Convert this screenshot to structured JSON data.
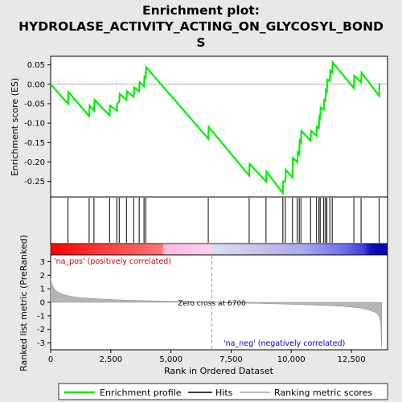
{
  "chart_data": {
    "type": "line",
    "title_lines": [
      "Enrichment plot:",
      "HYDROLASE_ACTIVITY_ACTING_ON_GLYCOSYL_BOND",
      "S"
    ],
    "top_panel": {
      "ylabel": "Enrichment score (ES)",
      "yticks": [
        0.05,
        0.0,
        -0.05,
        -0.1,
        -0.15,
        -0.2,
        -0.25
      ],
      "ytick_labels": [
        "0.05",
        "0.00",
        "-0.05",
        "-0.10",
        "-0.15",
        "-0.20",
        "-0.25"
      ],
      "ylim": [
        -0.29,
        0.072
      ],
      "series_name": "Enrichment profile",
      "color": "#00ee00",
      "points": [
        [
          0,
          0.0
        ],
        [
          720,
          -0.05
        ],
        [
          740,
          -0.02
        ],
        [
          1600,
          -0.082
        ],
        [
          1620,
          -0.055
        ],
        [
          1800,
          -0.068
        ],
        [
          1820,
          -0.04
        ],
        [
          2450,
          -0.08
        ],
        [
          2470,
          -0.055
        ],
        [
          2750,
          -0.068
        ],
        [
          2770,
          -0.05
        ],
        [
          2850,
          -0.045
        ],
        [
          2870,
          -0.025
        ],
        [
          3150,
          -0.04
        ],
        [
          3170,
          -0.018
        ],
        [
          3450,
          -0.032
        ],
        [
          3470,
          -0.008
        ],
        [
          3680,
          -0.018
        ],
        [
          3700,
          0.005
        ],
        [
          3880,
          -0.005
        ],
        [
          3900,
          0.02
        ],
        [
          3950,
          0.018
        ],
        [
          3970,
          0.044
        ],
        [
          6550,
          -0.14
        ],
        [
          6570,
          -0.11
        ],
        [
          8250,
          -0.235
        ],
        [
          8270,
          -0.205
        ],
        [
          8950,
          -0.25
        ],
        [
          8970,
          -0.225
        ],
        [
          9650,
          -0.28
        ],
        [
          9670,
          -0.25
        ],
        [
          9750,
          -0.25
        ],
        [
          9770,
          -0.22
        ],
        [
          10050,
          -0.24
        ],
        [
          10070,
          -0.19
        ],
        [
          10250,
          -0.2
        ],
        [
          10270,
          -0.175
        ],
        [
          10330,
          -0.18
        ],
        [
          10350,
          -0.145
        ],
        [
          10400,
          -0.15
        ],
        [
          10420,
          -0.12
        ],
        [
          10800,
          -0.145
        ],
        [
          10820,
          -0.12
        ],
        [
          11050,
          -0.133
        ],
        [
          11070,
          -0.108
        ],
        [
          11150,
          -0.112
        ],
        [
          11170,
          -0.085
        ],
        [
          11200,
          -0.088
        ],
        [
          11220,
          -0.06
        ],
        [
          11350,
          -0.065
        ],
        [
          11370,
          -0.04
        ],
        [
          11420,
          -0.042
        ],
        [
          11440,
          -0.015
        ],
        [
          11480,
          -0.018
        ],
        [
          11500,
          0.012
        ],
        [
          11600,
          0.008
        ],
        [
          11620,
          0.035
        ],
        [
          11700,
          0.03
        ],
        [
          11720,
          0.056
        ],
        [
          12600,
          -0.01
        ],
        [
          12620,
          0.022
        ],
        [
          12900,
          0.005
        ],
        [
          12920,
          0.03
        ],
        [
          13650,
          -0.03
        ],
        [
          13670,
          0.002
        ]
      ]
    },
    "hits_panel": {
      "series_name": "Hits",
      "hit_ranks": [
        720,
        1600,
        1800,
        2450,
        2750,
        2850,
        3150,
        3450,
        3680,
        3880,
        3950,
        6550,
        8250,
        8950,
        9650,
        9750,
        10050,
        10250,
        10330,
        10400,
        10800,
        11050,
        11150,
        11200,
        11350,
        11420,
        11480,
        11600,
        11700,
        12600,
        12900,
        13650
      ]
    },
    "rank_panel": {
      "ylabel": "Ranked list metric (PreRanked)",
      "xlabel": "Rank in Ordered Dataset",
      "yticks": [
        3,
        2,
        1,
        0,
        -1,
        -2,
        -3
      ],
      "ytick_labels": [
        "3",
        "2",
        "1",
        "0",
        "-1",
        "-2",
        "-3"
      ],
      "ylim": [
        -3.5,
        3.5
      ],
      "xlim": [
        0,
        14000
      ],
      "xticks": [
        0,
        2500,
        5000,
        7500,
        10000,
        12500
      ],
      "xtick_labels": [
        "0",
        "2,500",
        "5,000",
        "7,500",
        "10,000",
        "12,500"
      ],
      "series_name": "Ranking metric scores",
      "metric_curve": [
        [
          0,
          1.8
        ],
        [
          60,
          1.3
        ],
        [
          150,
          1.0
        ],
        [
          300,
          0.75
        ],
        [
          500,
          0.6
        ],
        [
          800,
          0.45
        ],
        [
          1200,
          0.35
        ],
        [
          2000,
          0.25
        ],
        [
          3000,
          0.17
        ],
        [
          4000,
          0.12
        ],
        [
          5000,
          0.08
        ],
        [
          6000,
          0.04
        ],
        [
          6700,
          0.0
        ],
        [
          7500,
          -0.04
        ],
        [
          8500,
          -0.08
        ],
        [
          9500,
          -0.12
        ],
        [
          10500,
          -0.17
        ],
        [
          11500,
          -0.24
        ],
        [
          12200,
          -0.3
        ],
        [
          12800,
          -0.4
        ],
        [
          13200,
          -0.55
        ],
        [
          13500,
          -0.75
        ],
        [
          13650,
          -1.0
        ],
        [
          13720,
          -1.5
        ],
        [
          13760,
          -3.4
        ]
      ],
      "zero_cross_rank": 6700,
      "zero_cross_label": "Zero cross at 6700",
      "pos_label": "'na_pos' (positively correlated)",
      "neg_label": "'na_neg' (negatively correlated)"
    },
    "legend": {
      "placement": "bottom",
      "entries": [
        "Enrichment profile",
        "Hits",
        "Ranking metric scores"
      ]
    }
  }
}
